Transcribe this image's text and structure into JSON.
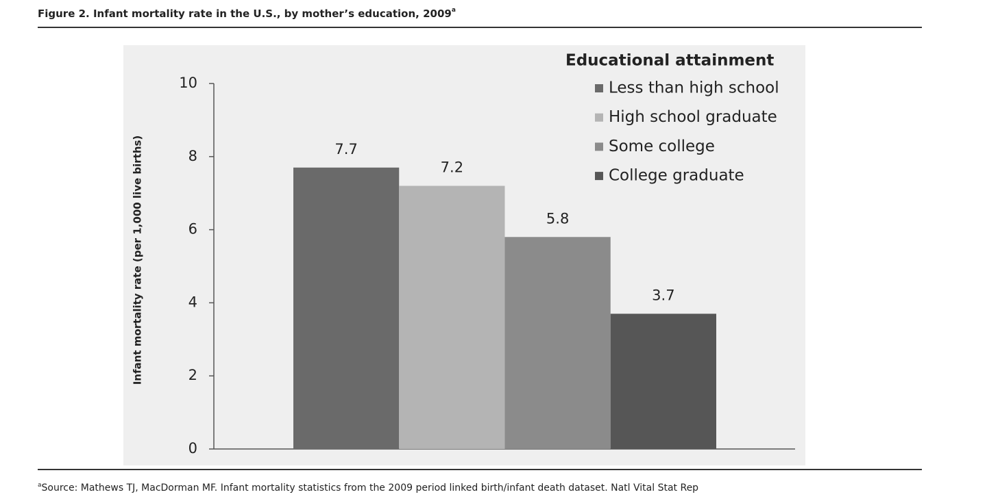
{
  "chart_data": {
    "type": "bar",
    "title": "Figure 2. Infant mortality rate in the U.S., by mother’s education, 2009",
    "title_marker": "a",
    "y_label": "Infant mortality rate (per 1,000 live births)",
    "legend_title": "Educational attainment",
    "series": [
      {
        "name": "Less than high school",
        "color": "#6a6a6a",
        "values": [
          7.7
        ]
      },
      {
        "name": "High school graduate",
        "color": "#b4b4b4",
        "values": [
          7.2
        ]
      },
      {
        "name": "Some college",
        "color": "#8b8b8b",
        "values": [
          5.8
        ]
      },
      {
        "name": "College graduate",
        "color": "#565656",
        "values": [
          3.7
        ]
      }
    ],
    "ylim": [
      0,
      10
    ],
    "yticks": [
      0,
      2,
      4,
      6,
      8,
      10
    ],
    "grid": false
  },
  "footnote": {
    "marker": "a",
    "text": "Source: Mathews TJ, MacDorman MF. Infant mortality statistics from the 2009 period linked birth/infant death dataset. Natl Vital Stat Rep"
  }
}
